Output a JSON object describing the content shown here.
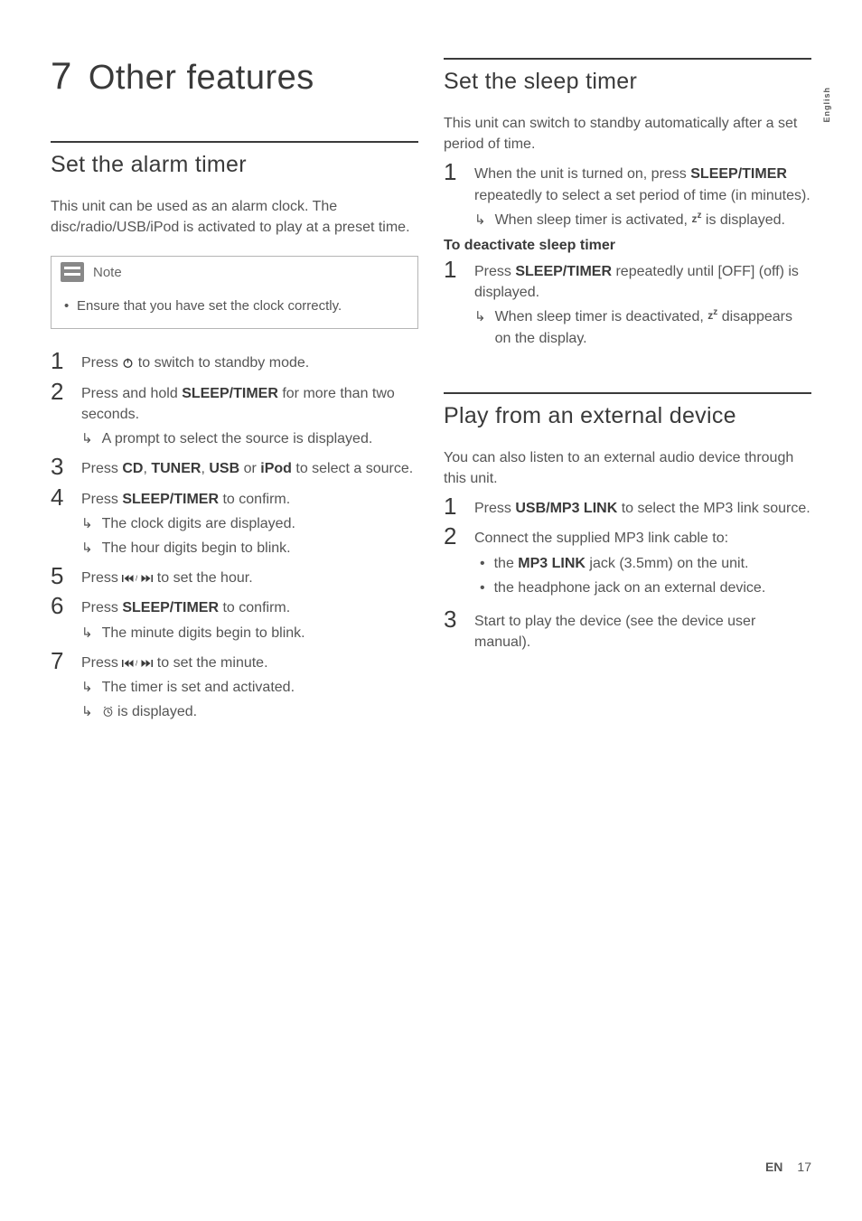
{
  "colors": {
    "text": "#4a4a4a",
    "heading": "#3a3a3a",
    "rule": "#3a3a3a",
    "box_border": "#b5b5b5",
    "note_icon_bg": "#888888",
    "background": "#ffffff"
  },
  "typography": {
    "chapter_title_size": 38,
    "section_title_size": 25,
    "body_size": 16,
    "step_num_size": 26,
    "font_family": "Gill Sans"
  },
  "side_tab": "English",
  "footer": {
    "lang": "EN",
    "page": "17"
  },
  "chapter": {
    "num": "7",
    "title": "Other features"
  },
  "left": {
    "section1": {
      "title": "Set the alarm timer",
      "intro": "This unit can be used as an alarm clock. The disc/radio/USB/iPod is activated to play at a preset time.",
      "note_label": "Note",
      "note_text": "Ensure that you have set the clock correctly.",
      "steps": [
        {
          "num": "1",
          "parts": [
            "Press ",
            {
              "icon": "power"
            },
            " to switch to standby mode."
          ]
        },
        {
          "num": "2",
          "parts": [
            "Press and hold ",
            {
              "b": "SLEEP/TIMER"
            },
            " for more than two seconds."
          ],
          "results": [
            "A prompt to select the source is displayed."
          ]
        },
        {
          "num": "3",
          "parts": [
            "Press ",
            {
              "b": "CD"
            },
            ", ",
            {
              "b": "TUNER"
            },
            ", ",
            {
              "b": "USB"
            },
            " or ",
            {
              "b": "iPod"
            },
            " to select a source."
          ]
        },
        {
          "num": "4",
          "parts": [
            "Press ",
            {
              "b": "SLEEP/TIMER"
            },
            " to confirm."
          ],
          "results": [
            "The clock digits are displayed.",
            "The hour digits begin to blink."
          ]
        },
        {
          "num": "5",
          "parts": [
            "Press ",
            {
              "icon": "prevnext"
            },
            " to set the hour."
          ]
        },
        {
          "num": "6",
          "parts": [
            "Press ",
            {
              "b": "SLEEP/TIMER"
            },
            " to confirm."
          ],
          "results": [
            "The minute digits begin to blink."
          ]
        },
        {
          "num": "7",
          "parts": [
            "Press ",
            {
              "icon": "prevnext"
            },
            " to set the minute."
          ],
          "results": [
            "The timer is set and activated.",
            {
              "parts": [
                {
                  "icon": "clock"
                },
                " is displayed."
              ]
            }
          ]
        }
      ]
    }
  },
  "right": {
    "section1": {
      "title": "Set the sleep timer",
      "intro": "This unit can switch to standby automatically after a set period of time.",
      "steps": [
        {
          "num": "1",
          "parts": [
            "When the unit is turned on, press ",
            {
              "b": "SLEEP/TIMER"
            },
            " repeatedly to select a set period of time (in minutes)."
          ],
          "results": [
            {
              "parts": [
                "When sleep timer is activated, ",
                {
                  "icon": "zz"
                },
                " is displayed."
              ]
            }
          ]
        }
      ],
      "subhead": "To deactivate sleep timer",
      "steps2": [
        {
          "num": "1",
          "parts": [
            "Press ",
            {
              "b": "SLEEP/TIMER"
            },
            " repeatedly until [OFF] (off) is displayed."
          ],
          "results": [
            {
              "parts": [
                "When sleep timer is deactivated, ",
                {
                  "icon": "zz"
                },
                " disappears on the display."
              ]
            }
          ]
        }
      ]
    },
    "section2": {
      "title": "Play from an external device",
      "intro": "You can also listen to an external audio device through this unit.",
      "steps": [
        {
          "num": "1",
          "parts": [
            "Press ",
            {
              "b": "USB/MP3 LINK"
            },
            " to select the MP3 link source."
          ]
        },
        {
          "num": "2",
          "parts": [
            "Connect the supplied MP3 link cable to:"
          ],
          "bullets": [
            {
              "parts": [
                "the ",
                {
                  "b": "MP3 LINK"
                },
                " jack (3.5mm) on the unit."
              ]
            },
            {
              "parts": [
                "the headphone jack on an external device."
              ]
            }
          ]
        },
        {
          "num": "3",
          "parts": [
            "Start to play the device (see the device user manual)."
          ]
        }
      ]
    }
  },
  "icons": {
    "result_arrow": "↳"
  }
}
